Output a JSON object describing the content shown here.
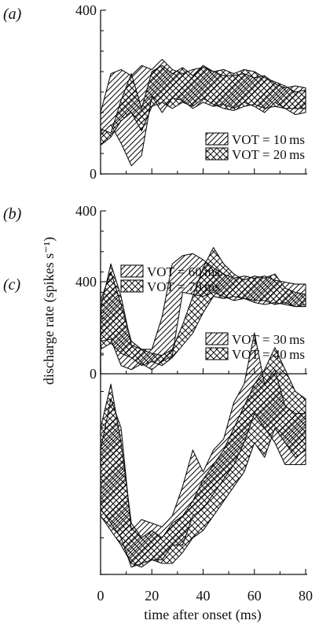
{
  "chart_data": {
    "type": "area",
    "xlabel": "time after onset (ms)",
    "ylabel": "discharge rate (spikes s⁻¹)",
    "x_ticks": [
      "0",
      "20",
      "40",
      "60",
      "80"
    ],
    "xlim": [
      0,
      80
    ],
    "panels": [
      {
        "label": "(a)",
        "ylim": [
          0,
          400
        ],
        "y_ticks": [
          "0",
          "400"
        ],
        "legend_position": "bottom-right",
        "series": [
          {
            "name": "VOT = 10 ms",
            "hatch": "forward",
            "x": [
              0,
              4,
              8,
              12,
              16,
              20,
              24,
              28,
              32,
              36,
              40,
              44,
              48,
              52,
              56,
              60,
              64,
              68,
              72,
              76,
              80
            ],
            "upper": [
              150,
              245,
              255,
              240,
              265,
              255,
              280,
              255,
              245,
              255,
              260,
              250,
              240,
              240,
              245,
              235,
              240,
              220,
              210,
              215,
              210
            ],
            "lower": [
              95,
              120,
              75,
              20,
              45,
              190,
              150,
              185,
              180,
              160,
              175,
              165,
              170,
              160,
              175,
              165,
              150,
              175,
              160,
              145,
              150
            ]
          },
          {
            "name": "VOT = 20 ms",
            "hatch": "cross",
            "x": [
              0,
              4,
              8,
              12,
              16,
              20,
              24,
              28,
              32,
              36,
              40,
              44,
              48,
              52,
              56,
              60,
              64,
              68,
              72,
              76,
              80
            ],
            "upper": [
              110,
              100,
              180,
              245,
              160,
              250,
              265,
              245,
              260,
              240,
              265,
              250,
              255,
              245,
              255,
              250,
              235,
              225,
              215,
              200,
              205
            ],
            "lower": [
              70,
              90,
              130,
              150,
              105,
              165,
              175,
              160,
              175,
              165,
              185,
              170,
              160,
              155,
              165,
              170,
              160,
              165,
              160,
              160,
              160
            ]
          }
        ]
      },
      {
        "label": "(b)",
        "ylim": [
          0,
          400
        ],
        "y_ticks": [
          "0",
          "400"
        ],
        "legend_position": "bottom-right",
        "series": [
          {
            "name": "VOT = 30 ms",
            "hatch": "forward",
            "x": [
              0,
              4,
              8,
              12,
              16,
              20,
              24,
              28,
              32,
              36,
              40,
              44,
              48,
              52,
              56,
              60,
              64,
              68,
              72,
              76,
              80
            ],
            "upper": [
              180,
              250,
              170,
              80,
              60,
              60,
              140,
              270,
              290,
              295,
              280,
              260,
              245,
              235,
              240,
              235,
              240,
              230,
              225,
              220,
              220
            ],
            "lower": [
              80,
              85,
              20,
              10,
              25,
              10,
              30,
              45,
              200,
              195,
              190,
              200,
              190,
              180,
              185,
              175,
              170,
              175,
              170,
              165,
              165
            ]
          },
          {
            "name": "VOT = 40 ms",
            "hatch": "cross",
            "x": [
              0,
              4,
              8,
              12,
              16,
              20,
              24,
              28,
              32,
              36,
              40,
              44,
              48,
              52,
              56,
              60,
              64,
              68,
              72,
              76,
              80
            ],
            "upper": [
              160,
              270,
              190,
              70,
              60,
              50,
              45,
              60,
              120,
              190,
              260,
              310,
              270,
              245,
              230,
              240,
              235,
              245,
              210,
              200,
              195
            ],
            "lower": [
              60,
              75,
              50,
              40,
              20,
              30,
              20,
              40,
              70,
              100,
              150,
              190,
              185,
              190,
              185,
              180,
              180,
              170,
              175,
              165,
              170
            ]
          }
        ]
      },
      {
        "label": "(c)",
        "ylim": [
          0,
          400
        ],
        "y_ticks": [
          "",
          "400"
        ],
        "legend_position": "top-left",
        "series": [
          {
            "name": "VOT = 60 ms",
            "hatch": "forward",
            "x": [
              0,
              4,
              8,
              12,
              16,
              20,
              24,
              28,
              32,
              36,
              40,
              44,
              48,
              52,
              56,
              60,
              64,
              68,
              72,
              76,
              80
            ],
            "upper": [
              170,
              240,
              200,
              60,
              75,
              70,
              65,
              80,
              120,
              170,
              140,
              170,
              185,
              235,
              260,
              330,
              260,
              280,
              230,
              220,
              220
            ],
            "lower": [
              90,
              70,
              50,
              10,
              15,
              20,
              20,
              40,
              40,
              80,
              90,
              110,
              130,
              150,
              180,
              220,
              200,
              180,
              150,
              150,
              150
            ]
          },
          {
            "name": "VOT = 70 ms",
            "hatch": "cross",
            "x": [
              0,
              4,
              8,
              12,
              16,
              20,
              24,
              28,
              32,
              36,
              40,
              44,
              48,
              52,
              56,
              60,
              64,
              68,
              72,
              76,
              80
            ],
            "upper": [
              200,
              260,
              180,
              70,
              50,
              60,
              50,
              70,
              80,
              100,
              130,
              150,
              170,
              200,
              230,
              260,
              280,
              310,
              280,
              250,
              240
            ],
            "lower": [
              80,
              60,
              40,
              15,
              10,
              20,
              15,
              15,
              30,
              50,
              60,
              80,
              100,
              120,
              140,
              180,
              160,
              200,
              180,
              160,
              170
            ]
          }
        ]
      }
    ]
  }
}
